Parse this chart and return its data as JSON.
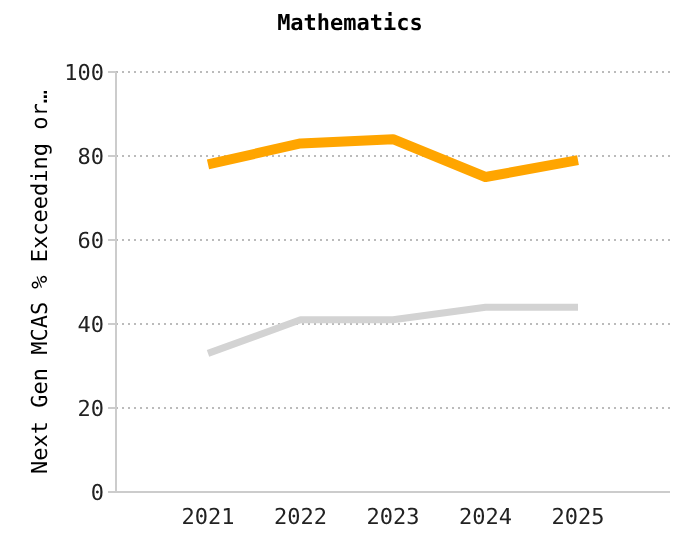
{
  "chart_data": {
    "type": "line",
    "title": "Mathematics",
    "ylabel": "Next Gen MCAS % Exceeding or…",
    "categories": [
      "2021",
      "2022",
      "2023",
      "2024",
      "2025"
    ],
    "series": [
      {
        "color": "#ffa500",
        "values": [
          78,
          83,
          84,
          75,
          79
        ]
      },
      {
        "color": "#d3d3d3",
        "values": [
          33,
          41,
          41,
          44,
          44
        ]
      }
    ],
    "ylim": [
      0,
      100
    ],
    "yticks": [
      0,
      20,
      40,
      60,
      80,
      100
    ],
    "grid": "y",
    "legend": false,
    "marker": "none",
    "line_style": "solid"
  }
}
